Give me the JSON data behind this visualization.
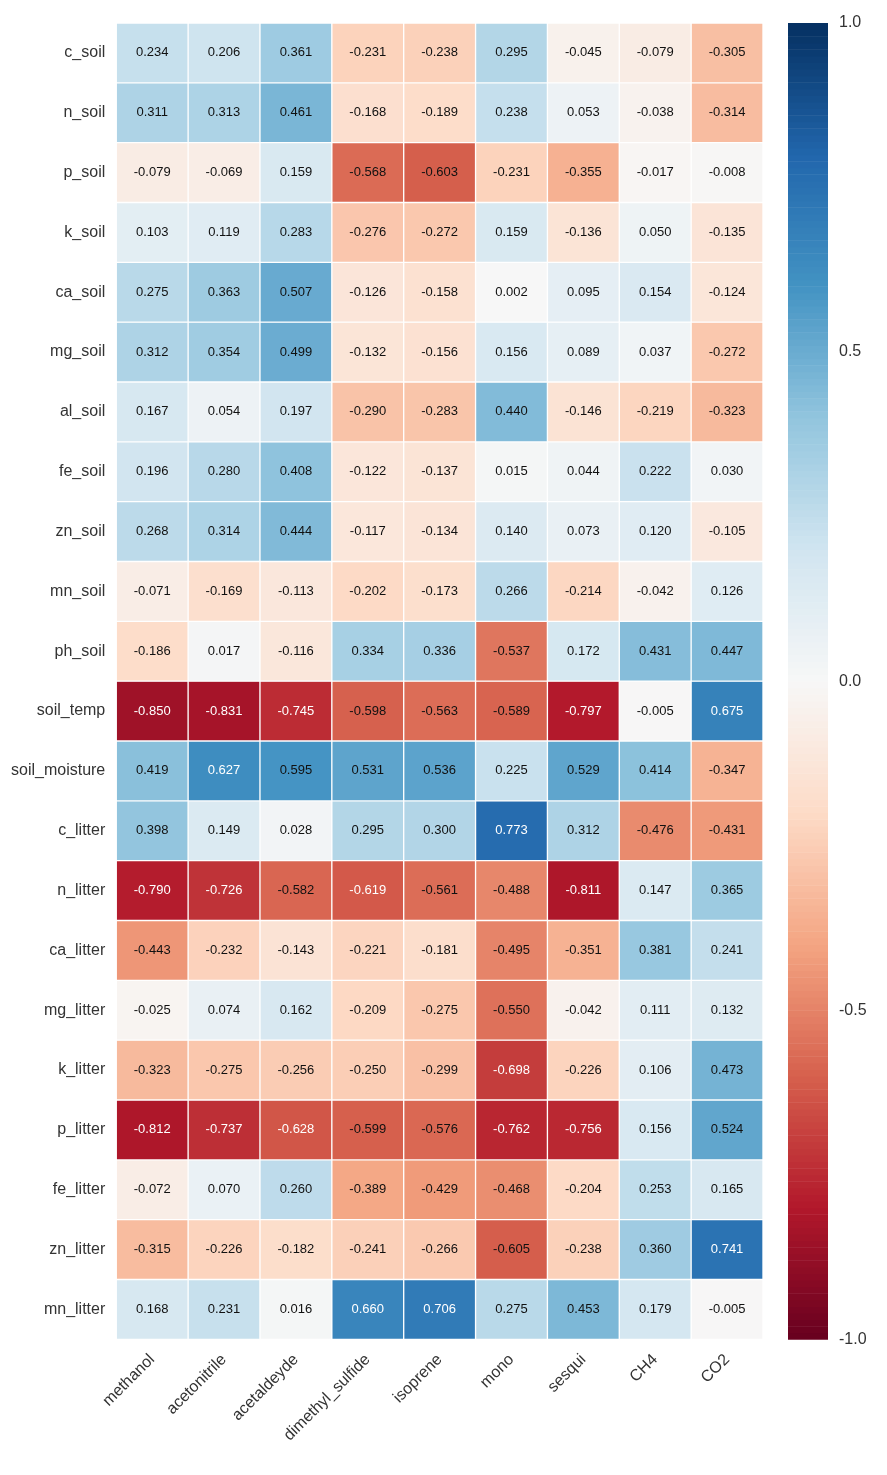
{
  "chart_data": {
    "type": "heatmap",
    "categories": [
      "methanol",
      "acetonitrile",
      "acetaldeyde",
      "dimethyl_sulfide",
      "isoprene",
      "mono",
      "sesqui",
      "CH4",
      "CO2"
    ],
    "y_categories": [
      "c_soil",
      "n_soil",
      "p_soil",
      "k_soil",
      "ca_soil",
      "mg_soil",
      "al_soil",
      "fe_soil",
      "zn_soil",
      "mn_soil",
      "ph_soil",
      "soil_temp",
      "soil_moisture",
      "c_litter",
      "n_litter",
      "ca_litter",
      "mg_litter",
      "k_litter",
      "p_litter",
      "fe_litter",
      "zn_litter",
      "mn_litter"
    ],
    "cells": [
      [
        0.234,
        0.206,
        0.361,
        -0.231,
        -0.238,
        0.295,
        -0.045,
        -0.079,
        -0.305
      ],
      [
        0.311,
        0.313,
        0.461,
        -0.168,
        -0.189,
        0.238,
        0.053,
        -0.038,
        -0.314
      ],
      [
        -0.079,
        -0.069,
        0.159,
        -0.568,
        -0.603,
        -0.231,
        -0.355,
        -0.017,
        -0.008
      ],
      [
        0.103,
        0.119,
        0.283,
        -0.276,
        -0.272,
        0.159,
        -0.136,
        0.05,
        -0.135
      ],
      [
        0.275,
        0.363,
        0.507,
        -0.126,
        -0.158,
        0.002,
        0.095,
        0.154,
        -0.124
      ],
      [
        0.312,
        0.354,
        0.499,
        -0.132,
        -0.156,
        0.156,
        0.089,
        0.037,
        -0.272
      ],
      [
        0.167,
        0.054,
        0.197,
        -0.29,
        -0.283,
        0.44,
        -0.146,
        -0.219,
        -0.323
      ],
      [
        0.196,
        0.28,
        0.408,
        -0.122,
        -0.137,
        0.015,
        0.044,
        0.222,
        0.03
      ],
      [
        0.268,
        0.314,
        0.444,
        -0.117,
        -0.134,
        0.14,
        0.073,
        0.12,
        -0.105
      ],
      [
        -0.071,
        -0.169,
        -0.113,
        -0.202,
        -0.173,
        0.266,
        -0.214,
        -0.042,
        0.126
      ],
      [
        -0.186,
        0.017,
        -0.116,
        0.334,
        0.336,
        -0.537,
        0.172,
        0.431,
        0.447
      ],
      [
        -0.85,
        -0.831,
        -0.745,
        -0.598,
        -0.563,
        -0.589,
        -0.797,
        -0.005,
        0.675
      ],
      [
        0.419,
        0.627,
        0.595,
        0.531,
        0.536,
        0.225,
        0.529,
        0.414,
        -0.347
      ],
      [
        0.398,
        0.149,
        0.028,
        0.295,
        0.3,
        0.773,
        0.312,
        -0.476,
        -0.431
      ],
      [
        -0.79,
        -0.726,
        -0.582,
        -0.619,
        -0.561,
        -0.488,
        -0.811,
        0.147,
        0.365
      ],
      [
        -0.443,
        -0.232,
        -0.143,
        -0.221,
        -0.181,
        -0.495,
        -0.351,
        0.381,
        0.241
      ],
      [
        -0.025,
        0.074,
        0.162,
        -0.209,
        -0.275,
        -0.55,
        -0.042,
        0.111,
        0.132
      ],
      [
        -0.323,
        -0.275,
        -0.256,
        -0.25,
        -0.299,
        -0.698,
        -0.226,
        0.106,
        0.473
      ],
      [
        -0.812,
        -0.737,
        -0.628,
        -0.599,
        -0.576,
        -0.762,
        -0.756,
        0.156,
        0.524
      ],
      [
        -0.072,
        0.07,
        0.26,
        -0.389,
        -0.429,
        -0.468,
        -0.204,
        0.253,
        0.165
      ],
      [
        -0.315,
        -0.226,
        -0.182,
        -0.241,
        -0.266,
        -0.605,
        -0.238,
        0.36,
        0.741
      ],
      [
        0.168,
        0.231,
        0.016,
        0.66,
        0.706,
        0.275,
        0.453,
        0.179,
        -0.005
      ]
    ],
    "cell_labels": [
      [
        "0.234",
        "0.206",
        "0.361",
        "-0.231",
        "-0.238",
        "0.295",
        "-0.045",
        "-0.079",
        "-0.305"
      ],
      [
        "0.311",
        "0.313",
        "0.461",
        "-0.168",
        "-0.189",
        "0.238",
        "0.053",
        "-0.038",
        "-0.314"
      ],
      [
        "-0.079",
        "-0.069",
        "0.159",
        "-0.568",
        "-0.603",
        "-0.231",
        "-0.355",
        "-0.017",
        "-0.008"
      ],
      [
        "0.103",
        "0.119",
        "0.283",
        "-0.276",
        "-0.272",
        "0.159",
        "-0.136",
        "0.050",
        "-0.135"
      ],
      [
        "0.275",
        "0.363",
        "0.507",
        "-0.126",
        "-0.158",
        "0.002",
        "0.095",
        "0.154",
        "-0.124"
      ],
      [
        "0.312",
        "0.354",
        "0.499",
        "-0.132",
        "-0.156",
        "0.156",
        "0.089",
        "0.037",
        "-0.272"
      ],
      [
        "0.167",
        "0.054",
        "0.197",
        "-0.290",
        "-0.283",
        "0.440",
        "-0.146",
        "-0.219",
        "-0.323"
      ],
      [
        "0.196",
        "0.280",
        "0.408",
        "-0.122",
        "-0.137",
        "0.015",
        "0.044",
        "0.222",
        "0.030"
      ],
      [
        "0.268",
        "0.314",
        "0.444",
        "-0.117",
        "-0.134",
        "0.140",
        "0.073",
        "0.120",
        "-0.105"
      ],
      [
        "-0.071",
        "-0.169",
        "-0.113",
        "-0.202",
        "-0.173",
        "0.266",
        "-0.214",
        "-0.042",
        "0.126"
      ],
      [
        "-0.186",
        "0.017",
        "-0.116",
        "0.334",
        "0.336",
        "-0.537",
        "0.172",
        "0.431",
        "0.447"
      ],
      [
        "-0.850",
        "-0.831",
        "-0.745",
        "-0.598",
        "-0.563",
        "-0.589",
        "-0.797",
        "-0.005",
        "0.675"
      ],
      [
        "0.419",
        "0.627",
        "0.595",
        "0.531",
        "0.536",
        "0.225",
        "0.529",
        "0.414",
        "-0.347"
      ],
      [
        "0.398",
        "0.149",
        "0.028",
        "0.295",
        "0.300",
        "0.773",
        "0.312",
        "-0.476",
        "-0.431"
      ],
      [
        "-0.790",
        "-0.726",
        "-0.582",
        "-0.619",
        "-0.561",
        "-0.488",
        "-0.811",
        "0.147",
        "0.365"
      ],
      [
        "-0.443",
        "-0.232",
        "-0.143",
        "-0.221",
        "-0.181",
        "-0.495",
        "-0.351",
        "0.381",
        "0.241"
      ],
      [
        "-0.025",
        "0.074",
        "0.162",
        "-0.209",
        "-0.275",
        "-0.550",
        "-0.042",
        "0.111",
        "0.132"
      ],
      [
        "-0.323",
        "-0.275",
        "-0.256",
        "-0.250",
        "-0.299",
        "-0.698",
        "-0.226",
        "0.106",
        "0.473"
      ],
      [
        "-0.812",
        "-0.737",
        "-0.628",
        "-0.599",
        "-0.576",
        "-0.762",
        "-0.756",
        "0.156",
        "0.524"
      ],
      [
        "-0.072",
        "0.070",
        "0.260",
        "-0.389",
        "-0.429",
        "-0.468",
        "-0.204",
        "0.253",
        "0.165"
      ],
      [
        "-0.315",
        "-0.226",
        "-0.182",
        "-0.241",
        "-0.266",
        "-0.605",
        "-0.238",
        "0.360",
        "0.741"
      ],
      [
        "0.168",
        "0.231",
        "0.016",
        "0.660",
        "0.706",
        "0.275",
        "0.453",
        "0.179",
        "-0.005"
      ]
    ],
    "clim": [
      -1,
      1
    ],
    "cticks": [
      {
        "value": -1,
        "label": "-1.0"
      },
      {
        "value": -0.5,
        "label": "-0.5"
      },
      {
        "value": 0,
        "label": "0.0"
      },
      {
        "value": 0.5,
        "label": "0.5"
      },
      {
        "value": 1,
        "label": "1.0"
      }
    ],
    "data_labels": true
  }
}
